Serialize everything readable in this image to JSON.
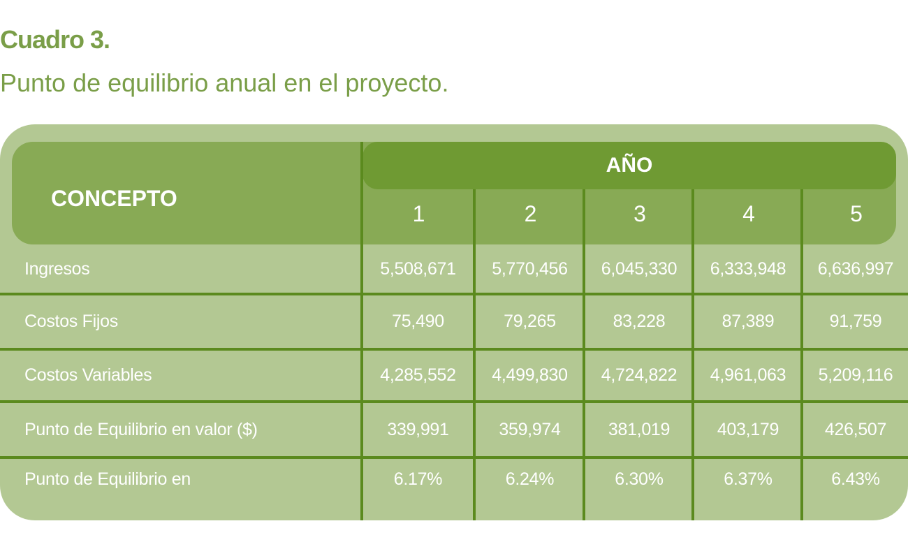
{
  "title": "Cuadro 3.",
  "subtitle": "Punto de equilibrio anual en el proyecto.",
  "table": {
    "concept_header": "CONCEPTO",
    "year_header": "AÑO",
    "years": [
      "1",
      "2",
      "3",
      "4",
      "5"
    ],
    "rows": [
      {
        "label": "Ingresos",
        "values": [
          "5,508,671",
          "5,770,456",
          "6,045,330",
          "6,333,948",
          "6,636,997"
        ]
      },
      {
        "label": "Costos Fijos",
        "values": [
          "75,490",
          "79,265",
          "83,228",
          "87,389",
          "91,759"
        ]
      },
      {
        "label": "Costos Variables",
        "values": [
          "4,285,552",
          "4,499,830",
          "4,724,822",
          "4,961,063",
          "5,209,116"
        ]
      },
      {
        "label": "Punto de Equilibrio en valor ($)",
        "values": [
          "339,991",
          "359,974",
          "381,019",
          "403,179",
          "426,507"
        ]
      },
      {
        "label": "Punto de Equilibrio en",
        "values": [
          "6.17%",
          "6.24%",
          "6.30%",
          "6.37%",
          "6.43%"
        ]
      }
    ]
  },
  "colors": {
    "accent": "#7a9e48",
    "header": "#88aa55",
    "year_bar": "#6f9a33",
    "body": "#b3c893",
    "lines": "#5b8a1e"
  }
}
